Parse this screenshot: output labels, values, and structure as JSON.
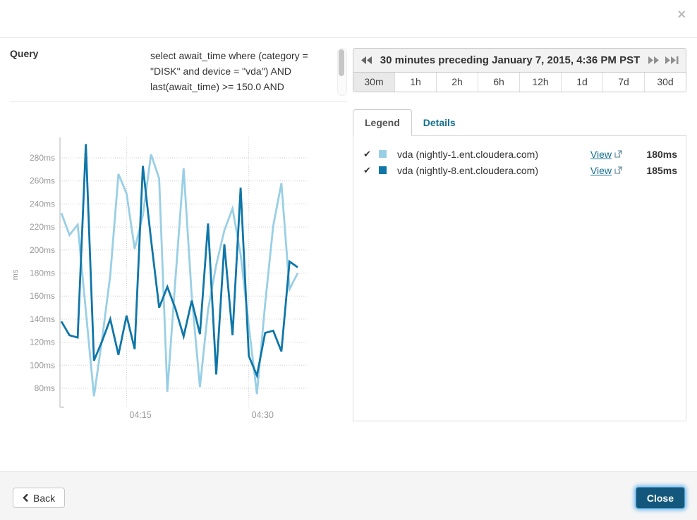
{
  "modal": {
    "close_icon": "×"
  },
  "query_section": {
    "label": "Query",
    "text": "select await_time where (category = \"DISK\" and device = \"vda\") AND last(await_time) >= 150.0 AND"
  },
  "time_range": {
    "title": "30 minutes preceding January 7, 2015, 4:36 PM PST",
    "ranges": [
      "30m",
      "1h",
      "2h",
      "6h",
      "12h",
      "1d",
      "7d",
      "30d"
    ],
    "selected_range": "30m"
  },
  "tabs": {
    "legend_label": "Legend",
    "details_label": "Details",
    "active": "Legend"
  },
  "legend": {
    "rows": [
      {
        "check": "✔",
        "series": "vda (nightly-1.ent.cloudera.com)",
        "link": "View",
        "value": "180ms",
        "color": "#99cfe5"
      },
      {
        "check": "✔",
        "series": "vda (nightly-8.ent.cloudera.com)",
        "link": "View",
        "value": "185ms",
        "color": "#0f76a8"
      }
    ]
  },
  "footer": {
    "back_label": "Back",
    "close_label": "Close"
  },
  "colors": {
    "link": "#16708f",
    "series_light": "#99cfe5",
    "series_dark": "#0f76a8",
    "axis": "#b3b3b3",
    "grid": "#cfcfcf",
    "tick_text": "#999999",
    "close_button_bg": "#13587c"
  },
  "chart_data": {
    "type": "line",
    "title": "",
    "ylabel": "ms",
    "y_tick_suffix": "ms",
    "y_ticks": [
      80,
      100,
      120,
      140,
      160,
      180,
      200,
      220,
      240,
      260,
      280
    ],
    "ylim": [
      65,
      298
    ],
    "x_start_minute": 7,
    "interval_minutes": 1,
    "x_window": "04:06 - 04:36 PM",
    "x_ticks": [
      {
        "label": "04:15",
        "minute": 15
      },
      {
        "label": "04:30",
        "minute": 30
      }
    ],
    "grid": "dotted",
    "legend_position": "external-right-panel",
    "series": [
      {
        "name": "vda (nightly-1.ent.cloudera.com)",
        "color": "#99cfe5",
        "current": "180ms",
        "values": [
          232,
          213,
          222,
          147,
          73,
          123,
          178,
          266,
          249,
          201,
          230,
          283,
          262,
          77,
          175,
          271,
          160,
          81,
          148,
          187,
          217,
          236,
          196,
          134,
          75,
          153,
          221,
          258,
          166,
          180
        ]
      },
      {
        "name": "vda (nightly-8.ent.cloudera.com)",
        "color": "#0f76a8",
        "current": "185ms",
        "values": [
          138,
          126,
          124,
          292,
          104,
          121,
          140,
          109,
          143,
          114,
          273,
          209,
          150,
          168,
          149,
          125,
          156,
          127,
          223,
          92,
          205,
          126,
          254,
          108,
          91,
          128,
          130,
          112,
          190,
          185
        ]
      }
    ]
  }
}
